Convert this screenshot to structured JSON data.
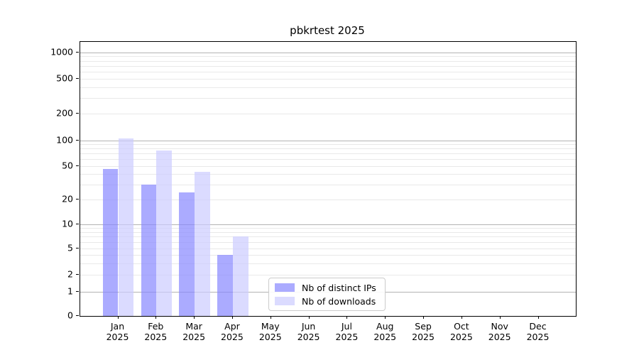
{
  "figure": {
    "background": "#ffffff"
  },
  "chart_data": {
    "type": "bar",
    "title": "pbkrtest 2025",
    "year_label": "2025",
    "months": [
      "Jan",
      "Feb",
      "Mar",
      "Apr",
      "May",
      "Jun",
      "Jul",
      "Aug",
      "Sep",
      "Oct",
      "Nov",
      "Dec"
    ],
    "categories": [
      "Jan 2025",
      "Feb 2025",
      "Mar 2025",
      "Apr 2025",
      "May 2025",
      "Jun 2025",
      "Jul 2025",
      "Aug 2025",
      "Sep 2025",
      "Oct 2025",
      "Nov 2025",
      "Dec 2025"
    ],
    "series": [
      {
        "name": "Nb of distinct IPs",
        "color": "rgba(136,136,255,0.7)",
        "values": [
          46,
          30,
          24,
          4,
          0,
          0,
          0,
          0,
          0,
          0,
          0,
          0
        ]
      },
      {
        "name": "Nb of downloads",
        "color": "rgba(204,204,255,0.7)",
        "values": [
          105,
          76,
          43,
          7,
          0,
          0,
          0,
          0,
          0,
          0,
          0,
          0
        ]
      }
    ],
    "y_axis": {
      "scale": "log-like with zero baseline",
      "ticks": [
        0,
        1,
        2,
        5,
        10,
        20,
        50,
        100,
        200,
        500,
        1000
      ],
      "major_grid_values": [
        1,
        10,
        100,
        1000
      ],
      "minor_grid_values": [
        2,
        3,
        4,
        5,
        6,
        7,
        8,
        9,
        20,
        30,
        40,
        50,
        60,
        70,
        80,
        90,
        200,
        300,
        400,
        500,
        600,
        700,
        800,
        900
      ]
    },
    "legend": {
      "position": "inside bottom, center-right",
      "entries": [
        "Nb of distinct IPs",
        "Nb of downloads"
      ]
    },
    "grid": "horizontal major and minor gridlines"
  },
  "colors": {
    "major_grid": "#b3b3b3",
    "minor_grid": "#e9e9e9",
    "axis": "#000000",
    "text": "#000000",
    "legend_border": "#cccccc"
  }
}
